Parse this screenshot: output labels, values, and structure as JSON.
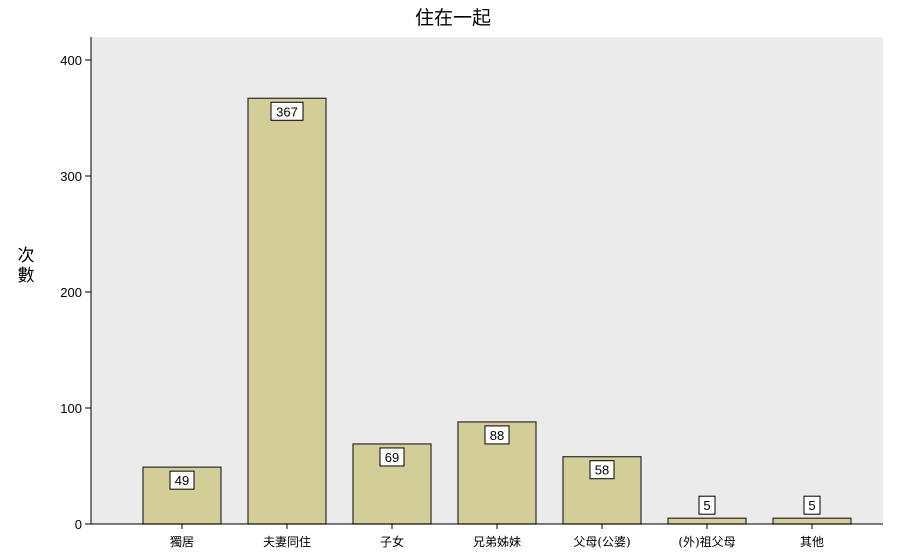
{
  "chart_data": {
    "type": "bar",
    "title": "住在一起",
    "xlabel": "",
    "ylabel": "次數",
    "categories": [
      "獨居",
      "夫妻同住",
      "子女",
      "兄弟姊妹",
      "父母(公婆)",
      "(外)祖父母",
      "其他"
    ],
    "values": [
      49,
      367,
      69,
      88,
      58,
      5,
      5
    ],
    "ylim": [
      0,
      400
    ],
    "yticks": [
      0,
      100,
      200,
      300,
      400
    ],
    "grid": false,
    "legend": "none",
    "colors": {
      "plot_background": "#ebebeb",
      "bar_fill": "#d3ce97",
      "bar_stroke": "#2b2b2b",
      "label_box_fill": "#ffffff"
    }
  }
}
